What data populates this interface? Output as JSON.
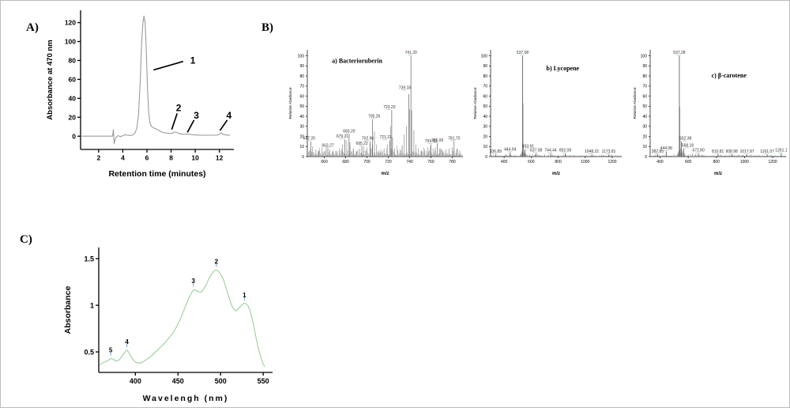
{
  "panels": {
    "A": {
      "label": "A)"
    },
    "B": {
      "label": "B)"
    },
    "C": {
      "label": "C)"
    }
  },
  "chart_data": [
    {
      "id": "hplc",
      "mount": "chart-a",
      "type": "line",
      "title": "",
      "xlabel": "Retention time (minutes)",
      "ylabel": "Absorbance at 470 nm",
      "xlim": [
        0.5,
        13.2
      ],
      "ylim": [
        -14,
        133
      ],
      "xticks": [
        2,
        4,
        6,
        8,
        10,
        12
      ],
      "yticks": [
        0,
        20,
        40,
        60,
        80,
        100,
        120
      ],
      "line_color": "#9a9a9a",
      "points": [
        [
          0.6,
          0
        ],
        [
          1,
          0
        ],
        [
          1.5,
          0
        ],
        [
          2,
          0
        ],
        [
          2.5,
          0
        ],
        [
          3,
          0
        ],
        [
          3.15,
          0
        ],
        [
          3.22,
          7
        ],
        [
          3.28,
          -8
        ],
        [
          3.35,
          -4
        ],
        [
          3.45,
          -1
        ],
        [
          3.6,
          0.5
        ],
        [
          3.8,
          -0.5
        ],
        [
          4,
          0.5
        ],
        [
          4.2,
          1.5
        ],
        [
          4.4,
          1
        ],
        [
          4.6,
          0.8
        ],
        [
          4.8,
          1.2
        ],
        [
          5,
          3
        ],
        [
          5.15,
          8
        ],
        [
          5.3,
          22
        ],
        [
          5.45,
          60
        ],
        [
          5.55,
          95
        ],
        [
          5.65,
          118
        ],
        [
          5.75,
          127
        ],
        [
          5.85,
          120
        ],
        [
          5.95,
          88
        ],
        [
          6.05,
          48
        ],
        [
          6.15,
          24
        ],
        [
          6.25,
          14
        ],
        [
          6.4,
          10
        ],
        [
          6.6,
          8.5
        ],
        [
          6.8,
          7.5
        ],
        [
          7,
          6
        ],
        [
          7.2,
          4.5
        ],
        [
          7.5,
          3.5
        ],
        [
          7.8,
          3
        ],
        [
          8.1,
          3
        ],
        [
          8.3,
          4.5
        ],
        [
          8.45,
          4
        ],
        [
          8.7,
          2.5
        ],
        [
          9,
          2
        ],
        [
          9.3,
          2.3
        ],
        [
          9.5,
          2
        ],
        [
          9.8,
          1.5
        ],
        [
          10.2,
          1.2
        ],
        [
          10.6,
          1
        ],
        [
          11,
          1
        ],
        [
          11.4,
          1
        ],
        [
          11.8,
          1.2
        ],
        [
          12,
          2
        ],
        [
          12.15,
          3.5
        ],
        [
          12.3,
          2
        ],
        [
          12.6,
          1.2
        ],
        [
          12.9,
          1
        ]
      ],
      "annotations": [
        {
          "label": "1",
          "x": 9.8,
          "y": 80,
          "line": [
            6.55,
            70,
            9.0,
            79
          ]
        },
        {
          "label": "2",
          "x": 8.62,
          "y": 30,
          "line": [
            8.05,
            7,
            8.5,
            24
          ]
        },
        {
          "label": "3",
          "x": 10.1,
          "y": 22,
          "line": [
            9.35,
            4,
            9.9,
            17
          ]
        },
        {
          "label": "4",
          "x": 12.8,
          "y": 22,
          "line": [
            12.05,
            6,
            12.65,
            17
          ]
        }
      ]
    },
    {
      "id": "ms-bacterioruberin",
      "mount": "chart-ba",
      "type": "masspec",
      "title": "a) Bacterioruberin",
      "xlabel": "m/z",
      "ylabel": "Relative Abudance",
      "xlim": [
        644,
        790
      ],
      "ylim": [
        0,
        106
      ],
      "xticks": [
        660,
        680,
        700,
        720,
        740,
        760,
        780
      ],
      "yticks": [
        0,
        10,
        20,
        30,
        40,
        50,
        60,
        70,
        80,
        90,
        100
      ],
      "bar_color": "#8c8c8c",
      "peak_color": "#606060",
      "label_tick_color": "#a4d4a4",
      "labeled_peaks": [
        {
          "mz": 647.2,
          "rel": 15,
          "label": "647.20",
          "dx": -2
        },
        {
          "mz": 663.27,
          "rel": 8,
          "label": "663.27"
        },
        {
          "mz": 679.21,
          "rel": 17,
          "label": "679.21",
          "dx": -3
        },
        {
          "mz": 683.2,
          "rel": 22,
          "label": "683.20"
        },
        {
          "mz": 695.22,
          "rel": 10,
          "label": "695.22"
        },
        {
          "mz": 702.96,
          "rel": 15,
          "label": "702.96",
          "dx": -3
        },
        {
          "mz": 705.26,
          "rel": 37,
          "label": "705.26",
          "dx": 2
        },
        {
          "mz": 721.21,
          "rel": 16,
          "label": "721.21",
          "dx": -5
        },
        {
          "mz": 723.2,
          "rel": 46,
          "label": "723.20",
          "dx": -3
        },
        {
          "mz": 739.18,
          "rel": 62,
          "label": "739.18",
          "dx": -5,
          "dy": -4
        },
        {
          "mz": 741.2,
          "rel": 100,
          "label": "741.20"
        },
        {
          "mz": 759.93,
          "rel": 12,
          "label": "759.93"
        },
        {
          "mz": 766.0,
          "rel": 13,
          "label": "766.00"
        },
        {
          "mz": 781.7,
          "rel": 15,
          "label": "781.70"
        }
      ],
      "extra_peaks": [
        [
          649,
          10
        ],
        [
          652,
          7
        ],
        [
          655,
          6
        ],
        [
          658,
          5
        ],
        [
          661,
          6
        ],
        [
          665,
          7
        ],
        [
          668,
          5
        ],
        [
          671,
          6
        ],
        [
          674,
          8
        ],
        [
          677,
          12
        ],
        [
          681,
          16
        ],
        [
          684,
          14
        ],
        [
          687,
          7
        ],
        [
          690,
          5
        ],
        [
          693,
          8
        ],
        [
          697,
          6
        ],
        [
          700,
          9
        ],
        [
          703,
          13
        ],
        [
          707,
          25
        ],
        [
          709,
          12
        ],
        [
          711,
          6
        ],
        [
          713,
          7
        ],
        [
          716,
          8
        ],
        [
          719,
          12
        ],
        [
          722,
          30
        ],
        [
          724,
          19
        ],
        [
          726,
          8
        ],
        [
          729,
          6
        ],
        [
          731,
          7
        ],
        [
          733,
          10
        ],
        [
          735,
          22
        ],
        [
          737,
          30
        ],
        [
          740,
          47
        ],
        [
          742,
          46
        ],
        [
          744,
          26
        ],
        [
          746,
          12
        ],
        [
          748,
          8
        ],
        [
          751,
          6
        ],
        [
          754,
          7
        ],
        [
          757,
          9
        ],
        [
          762,
          8
        ],
        [
          764,
          9
        ],
        [
          768,
          8
        ],
        [
          771,
          6
        ],
        [
          774,
          7
        ],
        [
          777,
          8
        ],
        [
          780,
          9
        ],
        [
          784,
          7
        ],
        [
          787,
          6
        ]
      ],
      "noise": {
        "seed": 11,
        "step": 0.8,
        "base": 1.5,
        "max": 11
      }
    },
    {
      "id": "ms-lycopene",
      "mount": "chart-ly",
      "type": "masspec",
      "title": "b) Lycopene",
      "xlabel": "m/z",
      "ylabel": "Relative Abudance",
      "xlim": [
        300,
        1270
      ],
      "ylim": [
        0,
        106
      ],
      "xticks": [
        400,
        600,
        800,
        1000,
        1200
      ],
      "yticks": [
        0,
        10,
        20,
        30,
        40,
        50,
        60,
        70,
        80,
        90,
        100
      ],
      "bar_color": "#8c8c8c",
      "peak_color": "#505050",
      "label_tick_color": "#a4d4a4",
      "labeled_peaks": [
        {
          "mz": 336.89,
          "rel": 2,
          "label": "336.89"
        },
        {
          "mz": 444.94,
          "rel": 4,
          "label": "444.94"
        },
        {
          "mz": 537.08,
          "rel": 100,
          "label": "537.08"
        },
        {
          "mz": 553.91,
          "rel": 7,
          "label": "553.91",
          "dx": 4
        },
        {
          "mz": 637.08,
          "rel": 3,
          "label": "637.08"
        },
        {
          "mz": 744.44,
          "rel": 3,
          "label": "744.44"
        },
        {
          "mz": 852.08,
          "rel": 3,
          "label": "852.08"
        },
        {
          "mz": 1048.22,
          "rel": 2,
          "label": "1048.22"
        },
        {
          "mz": 1173.81,
          "rel": 2,
          "label": "1173.81"
        }
      ],
      "extra_peaks": [
        [
          520,
          2
        ],
        [
          527,
          3
        ],
        [
          531,
          4
        ],
        [
          534,
          6
        ],
        [
          540,
          53
        ],
        [
          543,
          12
        ],
        [
          546,
          5
        ],
        [
          549,
          3
        ],
        [
          560,
          3
        ],
        [
          570,
          2
        ],
        [
          590,
          2
        ],
        [
          610,
          2
        ],
        [
          650,
          2
        ],
        [
          700,
          2
        ],
        [
          760,
          2
        ]
      ],
      "noise": {
        "seed": 23,
        "step": 7,
        "base": 0.4,
        "max": 2.1
      }
    },
    {
      "id": "ms-beta-carotene",
      "mount": "chart-bc",
      "type": "masspec",
      "title": "c) β-carotene",
      "xlabel": "m/z",
      "ylabel": "Relative Abudance",
      "xlim": [
        330,
        1295
      ],
      "ylim": [
        0,
        106
      ],
      "xticks": [
        400,
        600,
        800,
        1000,
        1200
      ],
      "yticks": [
        0,
        10,
        20,
        30,
        40,
        50,
        60,
        70,
        80,
        90,
        100
      ],
      "bar_color": "#8c8c8c",
      "peak_color": "#505050",
      "label_tick_color": "#a4d4a4",
      "labeled_peaks": [
        {
          "mz": 382.85,
          "rel": 2,
          "label": "382.85"
        },
        {
          "mz": 444.08,
          "rel": 5,
          "label": "444.08"
        },
        {
          "mz": 537.28,
          "rel": 100,
          "label": "537.28"
        },
        {
          "mz": 552.38,
          "rel": 15,
          "label": "552.38",
          "dx": 5
        },
        {
          "mz": 568.18,
          "rel": 8,
          "label": "568.18",
          "dx": 5
        },
        {
          "mz": 672.8,
          "rel": 3,
          "label": "672.80"
        },
        {
          "mz": 810.81,
          "rel": 2,
          "label": "810.81"
        },
        {
          "mz": 908.98,
          "rel": 2,
          "label": "908.98"
        },
        {
          "mz": 1017.87,
          "rel": 2,
          "label": "1017.87"
        },
        {
          "mz": 1161.07,
          "rel": 2,
          "label": "1161.07"
        },
        {
          "mz": 1261.1,
          "rel": 3,
          "label": "1261.1"
        }
      ],
      "extra_peaks": [
        [
          525,
          3
        ],
        [
          530,
          4
        ],
        [
          534,
          6
        ],
        [
          540,
          49
        ],
        [
          542,
          20
        ],
        [
          545,
          8
        ],
        [
          548,
          4
        ],
        [
          557,
          6
        ],
        [
          561,
          4
        ],
        [
          575,
          3
        ],
        [
          600,
          2
        ],
        [
          630,
          3
        ],
        [
          650,
          2
        ],
        [
          700,
          2
        ]
      ],
      "noise": {
        "seed": 37,
        "step": 7,
        "base": 0.4,
        "max": 2.3
      }
    },
    {
      "id": "absorbance-spectrum",
      "mount": "chart-c",
      "type": "line",
      "title": "",
      "xlabel": "Wavelengh (nm)",
      "ylabel": "Absorbance",
      "xlim": [
        357,
        561
      ],
      "ylim": [
        0.28,
        1.62
      ],
      "xticks": [
        400,
        450,
        500,
        550
      ],
      "yticks": [
        0.5,
        1,
        1.5
      ],
      "line_color": "#9cce9c",
      "annotation_tick_color": "#7b9fd6",
      "points": [
        [
          358,
          0.36
        ],
        [
          362,
          0.385
        ],
        [
          366,
          0.4
        ],
        [
          369,
          0.415
        ],
        [
          372,
          0.43
        ],
        [
          375,
          0.415
        ],
        [
          378,
          0.4
        ],
        [
          381,
          0.415
        ],
        [
          384,
          0.45
        ],
        [
          387,
          0.49
        ],
        [
          390,
          0.52
        ],
        [
          392,
          0.5
        ],
        [
          395,
          0.445
        ],
        [
          398,
          0.41
        ],
        [
          401,
          0.385
        ],
        [
          404,
          0.38
        ],
        [
          407,
          0.385
        ],
        [
          410,
          0.4
        ],
        [
          414,
          0.425
        ],
        [
          418,
          0.45
        ],
        [
          422,
          0.485
        ],
        [
          426,
          0.52
        ],
        [
          430,
          0.555
        ],
        [
          434,
          0.59
        ],
        [
          438,
          0.635
        ],
        [
          442,
          0.68
        ],
        [
          446,
          0.73
        ],
        [
          450,
          0.8
        ],
        [
          454,
          0.88
        ],
        [
          458,
          0.97
        ],
        [
          462,
          1.06
        ],
        [
          465,
          1.12
        ],
        [
          468,
          1.165
        ],
        [
          471,
          1.16
        ],
        [
          474,
          1.145
        ],
        [
          477,
          1.14
        ],
        [
          480,
          1.17
        ],
        [
          483,
          1.22
        ],
        [
          486,
          1.28
        ],
        [
          489,
          1.33
        ],
        [
          492,
          1.365
        ],
        [
          495,
          1.38
        ],
        [
          498,
          1.36
        ],
        [
          501,
          1.32
        ],
        [
          504,
          1.26
        ],
        [
          507,
          1.17
        ],
        [
          510,
          1.08
        ],
        [
          513,
          1.0
        ],
        [
          516,
          0.95
        ],
        [
          518,
          0.94
        ],
        [
          521,
          0.965
        ],
        [
          524,
          0.995
        ],
        [
          527,
          1.02
        ],
        [
          529,
          1.02
        ],
        [
          532,
          1.0
        ],
        [
          535,
          0.93
        ],
        [
          538,
          0.82
        ],
        [
          541,
          0.68
        ],
        [
          544,
          0.55
        ],
        [
          547,
          0.45
        ],
        [
          550,
          0.37
        ],
        [
          552,
          0.34
        ]
      ],
      "annotations": [
        {
          "label": "1",
          "x": 528,
          "y": 1.11,
          "tick": true
        },
        {
          "label": "2",
          "x": 495,
          "y": 1.47,
          "tick": true
        },
        {
          "label": "3",
          "x": 468,
          "y": 1.26,
          "tick": true
        },
        {
          "label": "4",
          "x": 390,
          "y": 0.61,
          "tick": true
        },
        {
          "label": "5",
          "x": 371,
          "y": 0.52,
          "tick": true
        }
      ]
    }
  ]
}
